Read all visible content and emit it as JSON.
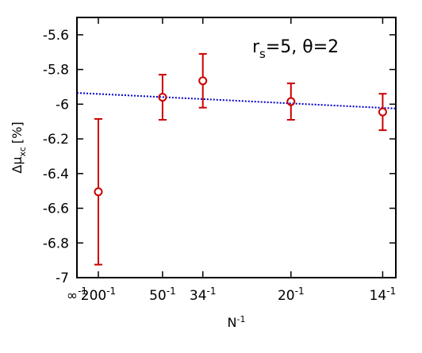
{
  "chart_data": {
    "type": "scatter",
    "annotation": "r_s=5, θ=2",
    "annotation_parts": {
      "r": "r",
      "s": "s",
      "rest": "=5, θ=2"
    },
    "xlabel": {
      "base": "N",
      "exp": "-1"
    },
    "ylabel": {
      "delta": "Δμ",
      "sub": "xc",
      "unit": "[%]"
    },
    "xlim": [
      0,
      0.0745
    ],
    "ylim": [
      -7.0,
      -5.5
    ],
    "x_ticks": [
      {
        "x": 0.0,
        "base": "∞",
        "exp": "-1"
      },
      {
        "x": 0.005,
        "base": "200",
        "exp": "-1"
      },
      {
        "x": 0.02,
        "base": "50",
        "exp": "-1"
      },
      {
        "x": 0.029412,
        "base": "34",
        "exp": "-1"
      },
      {
        "x": 0.05,
        "base": "20",
        "exp": "-1"
      },
      {
        "x": 0.071429,
        "base": "14",
        "exp": "-1"
      }
    ],
    "y_ticks": [
      {
        "y": -5.6,
        "label": "-5.6"
      },
      {
        "y": -5.8,
        "label": "-5.8"
      },
      {
        "y": -6.0,
        "label": "-6"
      },
      {
        "y": -6.2,
        "label": "-6.2"
      },
      {
        "y": -6.4,
        "label": "-6.4"
      },
      {
        "y": -6.6,
        "label": "-6.6"
      },
      {
        "y": -6.8,
        "label": "-6.8"
      },
      {
        "y": -7.0,
        "label": "-7"
      }
    ],
    "points": [
      {
        "x": 0.005,
        "y": -6.505,
        "err": 0.42
      },
      {
        "x": 0.02,
        "y": -5.96,
        "err": 0.13
      },
      {
        "x": 0.029412,
        "y": -5.865,
        "err": 0.155
      },
      {
        "x": 0.05,
        "y": -5.985,
        "err": 0.105
      },
      {
        "x": 0.071429,
        "y": -6.045,
        "err": 0.105
      }
    ],
    "fit_line": {
      "x": [
        0.0,
        0.0745
      ],
      "y": [
        -5.935,
        -6.025
      ]
    },
    "colors": {
      "points": "#cc0000",
      "fit": "#0000cc",
      "axes": "#000000"
    },
    "grid": false
  }
}
